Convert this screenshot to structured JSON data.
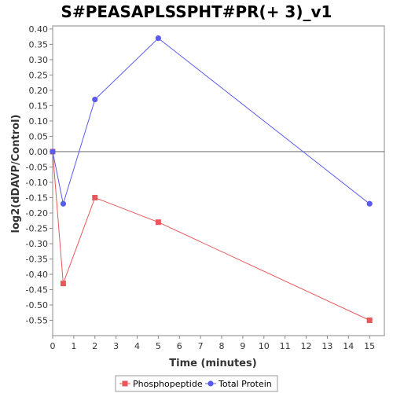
{
  "chart_data": {
    "type": "line",
    "title": "S#PEASAPLSSPHT#PR(+ 3)_v1",
    "xlabel": "Time (minutes)",
    "ylabel": "log2(dDAVP/Control)",
    "xlim": [
      0,
      15.7
    ],
    "ylim": [
      -0.6,
      0.41
    ],
    "xticks": [
      0,
      1,
      2,
      3,
      4,
      5,
      6,
      7,
      8,
      9,
      10,
      11,
      12,
      13,
      14,
      15
    ],
    "yticks": [
      0.4,
      0.35,
      0.3,
      0.25,
      0.2,
      0.15,
      0.1,
      0.05,
      0.0,
      -0.05,
      -0.1,
      -0.15,
      -0.2,
      -0.25,
      -0.3,
      -0.35,
      -0.4,
      -0.45,
      -0.5,
      -0.55
    ],
    "ytick_labels": [
      "0.40",
      "0.35",
      "0.30",
      "0.25",
      "0.20",
      "0.15",
      "0.10",
      "0.05",
      "0.00",
      "-0.05",
      "-0.10",
      "-0.15",
      "-0.20",
      "-0.25",
      "-0.30",
      "-0.35",
      "-0.40",
      "-0.45",
      "-0.50",
      "-0.55"
    ],
    "zero_line": true,
    "grid": false,
    "legend_position": "bottom",
    "series": [
      {
        "name": "Phosphopeptide",
        "color": "#e8585a",
        "marker": "square",
        "x": [
          0,
          0.5,
          2,
          5,
          15
        ],
        "y": [
          0.0,
          -0.43,
          -0.15,
          -0.23,
          -0.55
        ]
      },
      {
        "name": "Total Protein",
        "color": "#5a5aee",
        "marker": "circle",
        "x": [
          0,
          0.5,
          2,
          5,
          15
        ],
        "y": [
          0.0,
          -0.17,
          0.17,
          0.37,
          -0.17
        ]
      }
    ]
  }
}
